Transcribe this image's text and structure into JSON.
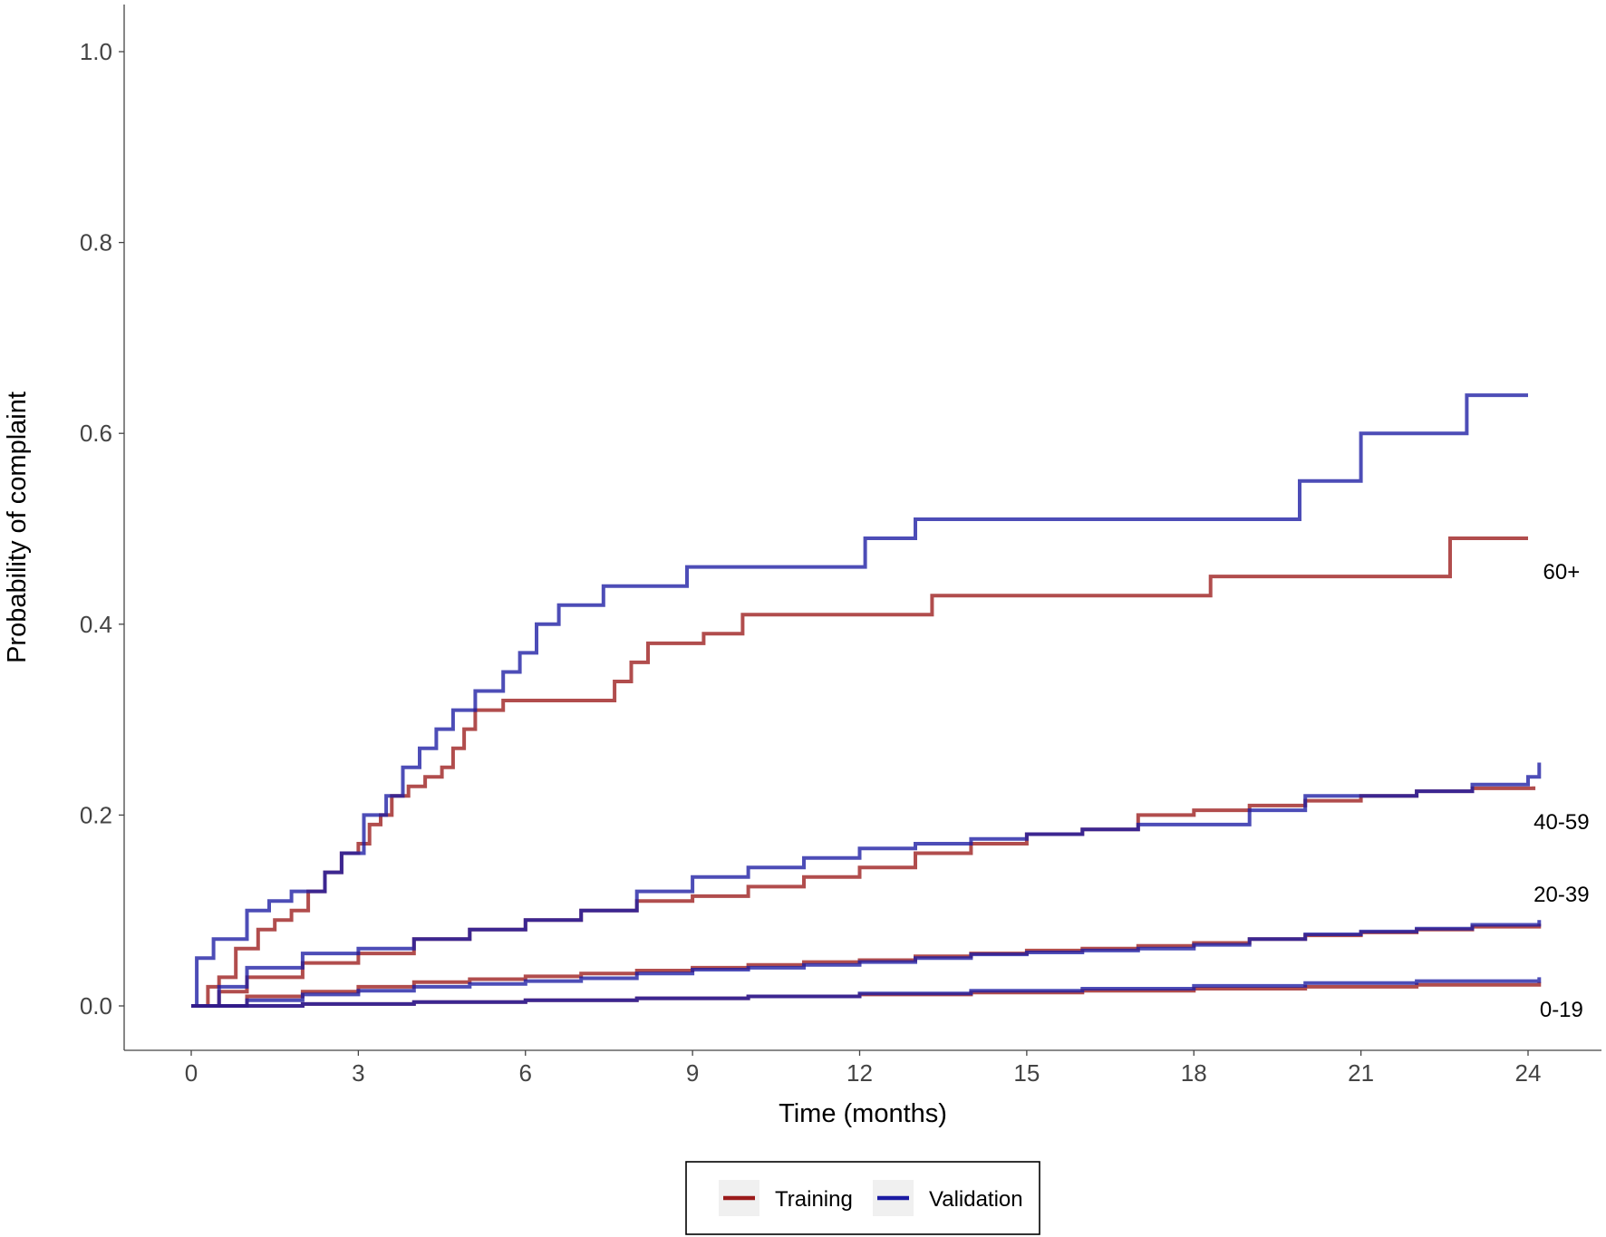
{
  "chart_data": {
    "type": "line",
    "step": true,
    "xlabel": "Time (months)",
    "ylabel": "Probability of complaint",
    "xlim": [
      -1.2,
      25.5
    ],
    "ylim": [
      -0.05,
      1.05
    ],
    "xticks": [
      "0",
      "3",
      "6",
      "9",
      "12",
      "15",
      "18",
      "21",
      "24"
    ],
    "yticks": [
      "0.0",
      "0.2",
      "0.4",
      "0.6",
      "0.8",
      "1.0"
    ],
    "legend": {
      "position": "bottom",
      "entries": [
        {
          "name": "Training",
          "color": "#9b1b1b"
        },
        {
          "name": "Validation",
          "color": "#1b1ba3"
        }
      ]
    },
    "group_labels": [
      {
        "text": "60+",
        "x": 24.6,
        "y": 0.455
      },
      {
        "text": "40-59",
        "x": 24.6,
        "y": 0.193
      },
      {
        "text": "20-39",
        "x": 24.6,
        "y": 0.117
      },
      {
        "text": "0-19",
        "x": 24.6,
        "y": -0.004
      }
    ],
    "series": [
      {
        "name": "Training",
        "group": "60+",
        "color": "#9b1b1b",
        "points": [
          [
            0,
            0
          ],
          [
            0.3,
            0.02
          ],
          [
            0.5,
            0.03
          ],
          [
            0.8,
            0.06
          ],
          [
            1.2,
            0.08
          ],
          [
            1.5,
            0.09
          ],
          [
            1.8,
            0.1
          ],
          [
            2.1,
            0.12
          ],
          [
            2.4,
            0.14
          ],
          [
            2.7,
            0.16
          ],
          [
            3.0,
            0.17
          ],
          [
            3.2,
            0.19
          ],
          [
            3.4,
            0.2
          ],
          [
            3.6,
            0.22
          ],
          [
            3.9,
            0.23
          ],
          [
            4.2,
            0.24
          ],
          [
            4.5,
            0.25
          ],
          [
            4.7,
            0.27
          ],
          [
            4.9,
            0.29
          ],
          [
            5.1,
            0.31
          ],
          [
            5.6,
            0.32
          ],
          [
            6.5,
            0.32
          ],
          [
            7.6,
            0.34
          ],
          [
            7.9,
            0.36
          ],
          [
            8.2,
            0.38
          ],
          [
            8.6,
            0.38
          ],
          [
            9.2,
            0.39
          ],
          [
            9.9,
            0.41
          ],
          [
            13.3,
            0.43
          ],
          [
            18.3,
            0.45
          ],
          [
            22.6,
            0.49
          ],
          [
            24.0,
            0.49
          ]
        ]
      },
      {
        "name": "Validation",
        "group": "60+",
        "color": "#1b1ba3",
        "points": [
          [
            0,
            0
          ],
          [
            0.1,
            0.05
          ],
          [
            0.4,
            0.07
          ],
          [
            1.0,
            0.1
          ],
          [
            1.4,
            0.11
          ],
          [
            1.8,
            0.12
          ],
          [
            2.4,
            0.14
          ],
          [
            2.7,
            0.16
          ],
          [
            3.1,
            0.2
          ],
          [
            3.5,
            0.22
          ],
          [
            3.8,
            0.25
          ],
          [
            4.1,
            0.27
          ],
          [
            4.4,
            0.29
          ],
          [
            4.7,
            0.31
          ],
          [
            5.1,
            0.33
          ],
          [
            5.6,
            0.35
          ],
          [
            5.9,
            0.37
          ],
          [
            6.2,
            0.4
          ],
          [
            6.6,
            0.42
          ],
          [
            7.4,
            0.44
          ],
          [
            8.9,
            0.46
          ],
          [
            12.1,
            0.49
          ],
          [
            13.0,
            0.51
          ],
          [
            19.9,
            0.55
          ],
          [
            21.0,
            0.6
          ],
          [
            22.9,
            0.64
          ],
          [
            24.0,
            0.64
          ]
        ]
      },
      {
        "name": "Training",
        "group": "40-59",
        "color": "#9b1b1b",
        "points": [
          [
            0,
            0
          ],
          [
            0.5,
            0.015
          ],
          [
            1,
            0.03
          ],
          [
            2,
            0.045
          ],
          [
            3,
            0.055
          ],
          [
            4,
            0.07
          ],
          [
            5,
            0.08
          ],
          [
            6,
            0.09
          ],
          [
            7,
            0.1
          ],
          [
            8,
            0.11
          ],
          [
            9,
            0.115
          ],
          [
            10,
            0.125
          ],
          [
            11,
            0.135
          ],
          [
            12,
            0.145
          ],
          [
            13,
            0.16
          ],
          [
            14,
            0.17
          ],
          [
            15,
            0.18
          ],
          [
            16,
            0.185
          ],
          [
            17,
            0.2
          ],
          [
            18,
            0.205
          ],
          [
            19,
            0.21
          ],
          [
            20,
            0.215
          ],
          [
            21,
            0.22
          ],
          [
            22,
            0.225
          ],
          [
            23,
            0.228
          ],
          [
            24.1,
            0.23
          ]
        ]
      },
      {
        "name": "Validation",
        "group": "40-59",
        "color": "#1b1ba3",
        "points": [
          [
            0,
            0
          ],
          [
            0.5,
            0.02
          ],
          [
            1,
            0.04
          ],
          [
            2,
            0.055
          ],
          [
            3,
            0.06
          ],
          [
            4,
            0.07
          ],
          [
            5,
            0.08
          ],
          [
            6,
            0.09
          ],
          [
            7,
            0.1
          ],
          [
            8,
            0.12
          ],
          [
            9,
            0.135
          ],
          [
            10,
            0.145
          ],
          [
            11,
            0.155
          ],
          [
            12,
            0.165
          ],
          [
            13,
            0.17
          ],
          [
            14,
            0.175
          ],
          [
            15,
            0.18
          ],
          [
            16,
            0.185
          ],
          [
            17,
            0.19
          ],
          [
            18,
            0.19
          ],
          [
            19,
            0.205
          ],
          [
            20,
            0.22
          ],
          [
            21,
            0.22
          ],
          [
            22,
            0.225
          ],
          [
            23,
            0.232
          ],
          [
            24,
            0.24
          ],
          [
            24.2,
            0.255
          ]
        ]
      },
      {
        "name": "Training",
        "group": "20-39",
        "color": "#9b1b1b",
        "points": [
          [
            0,
            0
          ],
          [
            1,
            0.01
          ],
          [
            2,
            0.015
          ],
          [
            3,
            0.02
          ],
          [
            4,
            0.025
          ],
          [
            5,
            0.028
          ],
          [
            6,
            0.031
          ],
          [
            7,
            0.034
          ],
          [
            8,
            0.037
          ],
          [
            9,
            0.04
          ],
          [
            10,
            0.043
          ],
          [
            11,
            0.046
          ],
          [
            12,
            0.048
          ],
          [
            13,
            0.052
          ],
          [
            14,
            0.055
          ],
          [
            15,
            0.058
          ],
          [
            16,
            0.06
          ],
          [
            17,
            0.063
          ],
          [
            18,
            0.066
          ],
          [
            19,
            0.07
          ],
          [
            20,
            0.074
          ],
          [
            21,
            0.077
          ],
          [
            22,
            0.08
          ],
          [
            23,
            0.083
          ],
          [
            24.2,
            0.086
          ]
        ]
      },
      {
        "name": "Validation",
        "group": "20-39",
        "color": "#1b1ba3",
        "points": [
          [
            0,
            0
          ],
          [
            1,
            0.006
          ],
          [
            2,
            0.012
          ],
          [
            3,
            0.016
          ],
          [
            4,
            0.02
          ],
          [
            5,
            0.023
          ],
          [
            6,
            0.026
          ],
          [
            7,
            0.029
          ],
          [
            8,
            0.034
          ],
          [
            9,
            0.038
          ],
          [
            10,
            0.04
          ],
          [
            11,
            0.043
          ],
          [
            12,
            0.046
          ],
          [
            13,
            0.05
          ],
          [
            14,
            0.054
          ],
          [
            15,
            0.056
          ],
          [
            16,
            0.058
          ],
          [
            17,
            0.06
          ],
          [
            18,
            0.064
          ],
          [
            19,
            0.07
          ],
          [
            20,
            0.075
          ],
          [
            21,
            0.078
          ],
          [
            22,
            0.081
          ],
          [
            23,
            0.085
          ],
          [
            24.2,
            0.09
          ]
        ]
      },
      {
        "name": "Training",
        "group": "0-19",
        "color": "#9b1b1b",
        "points": [
          [
            0,
            0
          ],
          [
            2,
            0.002
          ],
          [
            4,
            0.004
          ],
          [
            6,
            0.006
          ],
          [
            8,
            0.008
          ],
          [
            10,
            0.01
          ],
          [
            12,
            0.012
          ],
          [
            14,
            0.014
          ],
          [
            16,
            0.016
          ],
          [
            18,
            0.018
          ],
          [
            20,
            0.02
          ],
          [
            22,
            0.022
          ],
          [
            24.2,
            0.025
          ]
        ]
      },
      {
        "name": "Validation",
        "group": "0-19",
        "color": "#1b1ba3",
        "points": [
          [
            0,
            0
          ],
          [
            2,
            0.002
          ],
          [
            4,
            0.004
          ],
          [
            6,
            0.006
          ],
          [
            8,
            0.008
          ],
          [
            10,
            0.01
          ],
          [
            12,
            0.013
          ],
          [
            14,
            0.016
          ],
          [
            16,
            0.018
          ],
          [
            18,
            0.021
          ],
          [
            20,
            0.024
          ],
          [
            22,
            0.026
          ],
          [
            24.2,
            0.03
          ]
        ]
      }
    ]
  }
}
